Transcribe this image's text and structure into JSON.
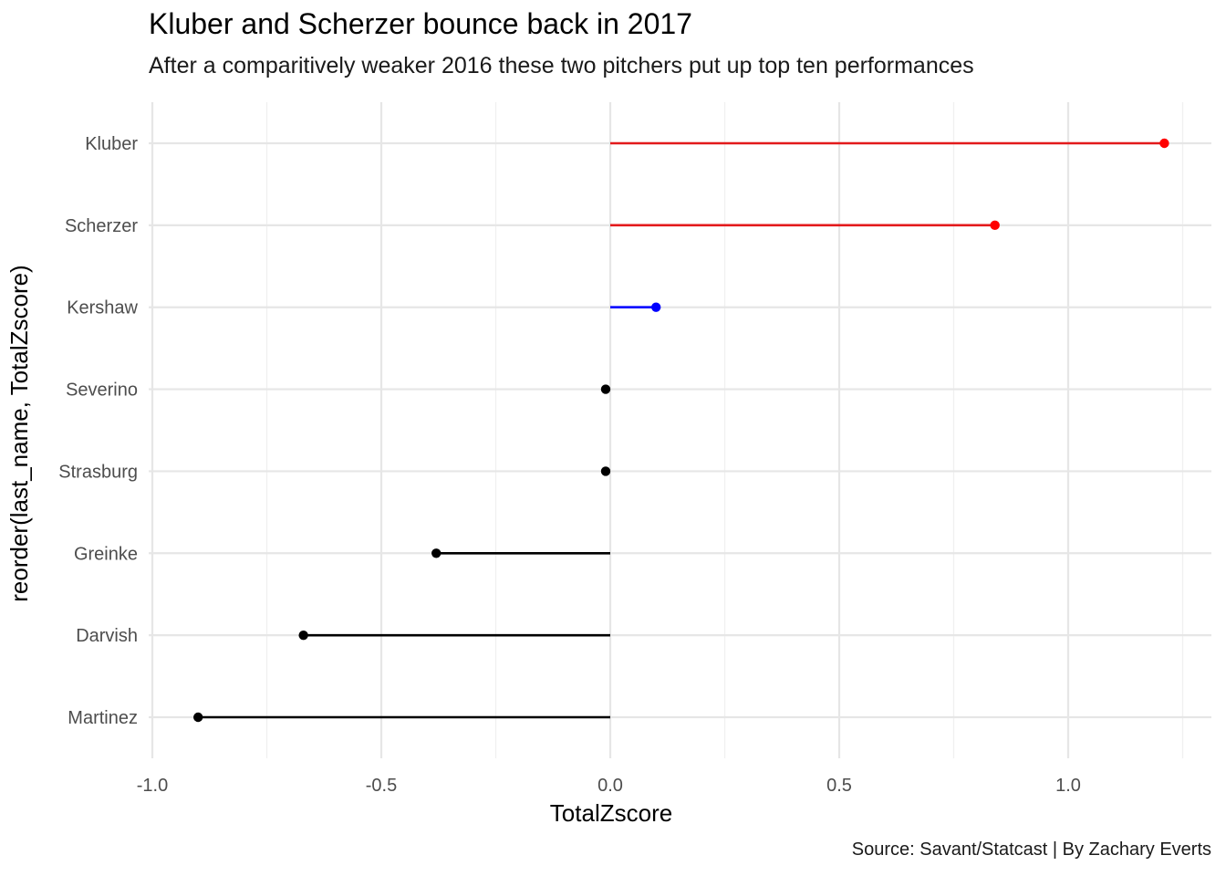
{
  "chart_data": {
    "type": "lollipop",
    "title": "Kluber and Scherzer bounce back in 2017",
    "subtitle": "After a comparitively weaker 2016 these two pitchers put up top ten performances",
    "xlabel": "TotalZscore",
    "ylabel": "reorder(last_name, TotalZscore)",
    "caption": "Source: Savant/Statcast | By Zachary Everts",
    "xlim": [
      -1.0,
      1.25
    ],
    "x_ticks": [
      -1.0,
      -0.5,
      0.0,
      0.5,
      1.0
    ],
    "x_tick_labels": [
      "-1.0",
      "-0.5",
      "0.0",
      "0.5",
      "1.0"
    ],
    "grid": true,
    "categories": [
      "Kluber",
      "Scherzer",
      "Kershaw",
      "Severino",
      "Strasburg",
      "Greinke",
      "Darvish",
      "Martinez"
    ],
    "values": [
      1.21,
      0.84,
      0.1,
      -0.01,
      -0.01,
      -0.38,
      -0.67,
      -0.9
    ],
    "colors": [
      "#ff0000",
      "#ff0000",
      "#0000ff",
      "#000000",
      "#000000",
      "#000000",
      "#000000",
      "#000000"
    ],
    "segment_colors": [
      "#e31a1c",
      "#e31a1c",
      "#0000ff",
      "#000000",
      "#000000",
      "#000000",
      "#000000",
      "#000000"
    ]
  }
}
